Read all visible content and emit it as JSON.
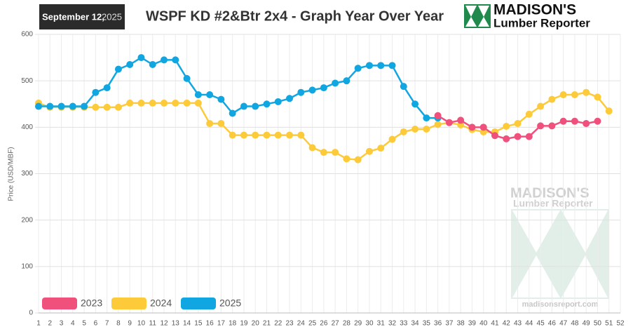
{
  "chart_data": {
    "type": "line",
    "date": "September 12,",
    "year": "2025",
    "title": "WSPF KD #2&Btr 2x4 - Graph Year Over Year",
    "logo": {
      "name": "MADISON'S",
      "subtitle": "Lumber Reporter"
    },
    "watermark": {
      "name": "MADISON'S",
      "subtitle": "Lumber Reporter",
      "url": "madisonsreport.com"
    },
    "y_label": "Price (USD/MBF)",
    "x": [
      1,
      2,
      3,
      4,
      5,
      6,
      7,
      8,
      9,
      10,
      11,
      12,
      13,
      14,
      15,
      16,
      17,
      18,
      19,
      20,
      21,
      22,
      23,
      24,
      25,
      26,
      27,
      28,
      29,
      30,
      31,
      32,
      33,
      34,
      35,
      36,
      37,
      38,
      39,
      40,
      41,
      42,
      43,
      44,
      45,
      46,
      47,
      48,
      49,
      50,
      51,
      52
    ],
    "xlim": [
      1,
      52
    ],
    "xticks": [
      1,
      2,
      3,
      4,
      5,
      6,
      7,
      8,
      9,
      10,
      11,
      12,
      13,
      14,
      15,
      16,
      17,
      18,
      19,
      20,
      21,
      22,
      23,
      24,
      25,
      26,
      27,
      28,
      29,
      30,
      31,
      32,
      33,
      34,
      35,
      36,
      37,
      38,
      39,
      40,
      41,
      42,
      43,
      44,
      45,
      46,
      47,
      48,
      49,
      50,
      51,
      52
    ],
    "ylim": [
      0,
      600
    ],
    "yticks": [
      0,
      100,
      200,
      300,
      400,
      500,
      600
    ],
    "grid": true,
    "legend": "bottom-left",
    "series": [
      {
        "name": "2023",
        "color": "#f0507c",
        "values": [
          null,
          null,
          null,
          null,
          null,
          null,
          null,
          null,
          null,
          null,
          null,
          null,
          null,
          null,
          null,
          null,
          null,
          null,
          null,
          null,
          null,
          null,
          null,
          null,
          null,
          null,
          null,
          null,
          null,
          null,
          null,
          null,
          null,
          null,
          null,
          425,
          410,
          415,
          400,
          400,
          382,
          375,
          380,
          380,
          403,
          403,
          413,
          413,
          408,
          413,
          null,
          null
        ]
      },
      {
        "name": "2024",
        "color": "#fdca3a",
        "values": [
          452,
          443,
          443,
          443,
          443,
          443,
          443,
          443,
          452,
          452,
          452,
          452,
          452,
          452,
          452,
          408,
          408,
          383,
          383,
          383,
          383,
          383,
          383,
          383,
          356,
          346,
          346,
          332,
          330,
          348,
          355,
          374,
          390,
          396,
          396,
          406,
          410,
          405,
          395,
          390,
          390,
          402,
          408,
          428,
          445,
          460,
          470,
          470,
          475,
          465,
          435,
          null
        ]
      },
      {
        "name": "2025",
        "color": "#10a6e2",
        "values": [
          445,
          445,
          445,
          445,
          445,
          475,
          485,
          525,
          535,
          550,
          535,
          545,
          545,
          505,
          470,
          470,
          460,
          430,
          445,
          445,
          450,
          455,
          462,
          475,
          480,
          485,
          495,
          500,
          527,
          533,
          533,
          533,
          488,
          450,
          420,
          420,
          null,
          null,
          null,
          null,
          null,
          null,
          null,
          null,
          null,
          null,
          null,
          null,
          null,
          null,
          null,
          null
        ]
      }
    ]
  }
}
